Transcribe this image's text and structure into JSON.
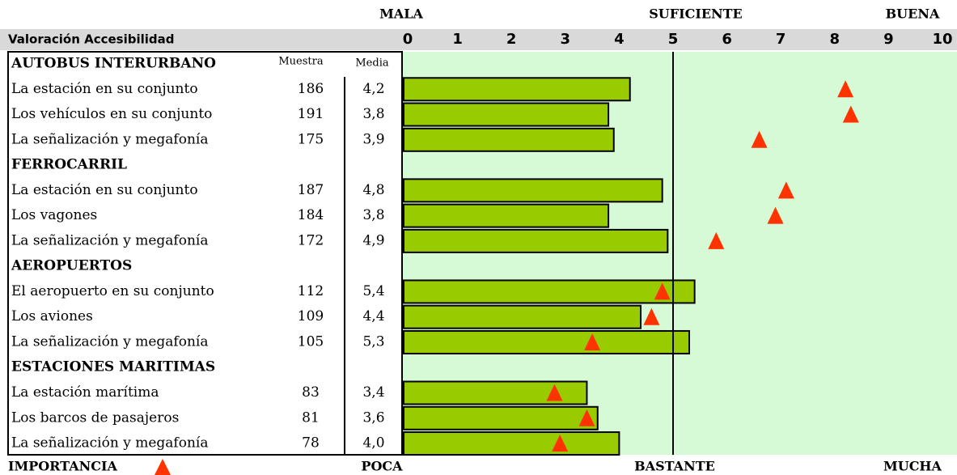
{
  "chart_data": {
    "type": "bar",
    "title": "Valoración Accesibilidad",
    "top_labels": [
      "MALA",
      "SUFICIENTE",
      "BUENA"
    ],
    "bottom_labels": [
      "POCA",
      "BASTANTE",
      "MUCHA"
    ],
    "marker_legend": "IMPORTANCIA",
    "sample_header": "Muestra",
    "mean_header": "Media",
    "xlim": [
      0,
      10
    ],
    "xticks": [
      0,
      1,
      2,
      3,
      4,
      5,
      6,
      7,
      8,
      9,
      10
    ],
    "reference_line": 5,
    "bar_color": "#99cc00",
    "marker_color": "#ff3300",
    "groups": [
      {
        "name": "AUTOBUS INTERURBANO",
        "categories": [
          "La estación en su conjunto",
          "Los vehículos en su conjunto",
          "La señalización y megafonía"
        ],
        "sample": [
          186,
          191,
          175
        ],
        "values": [
          4.2,
          3.8,
          3.9
        ],
        "value_labels": [
          "4,2",
          "3,8",
          "3,9"
        ],
        "importance": [
          8.2,
          8.3,
          6.6
        ]
      },
      {
        "name": "FERROCARRIL",
        "categories": [
          "La estación en su conjunto",
          "Los vagones",
          "La señalización y megafonía"
        ],
        "sample": [
          187,
          184,
          172
        ],
        "values": [
          4.8,
          3.8,
          4.9
        ],
        "value_labels": [
          "4,8",
          "3,8",
          "4,9"
        ],
        "importance": [
          7.1,
          6.9,
          5.8
        ]
      },
      {
        "name": "AEROPUERTOS",
        "categories": [
          "El aeropuerto en su conjunto",
          "Los aviones",
          "La señalización y megafonía"
        ],
        "sample": [
          112,
          109,
          105
        ],
        "values": [
          5.4,
          4.4,
          5.3
        ],
        "value_labels": [
          "5,4",
          "4,4",
          "5,3"
        ],
        "importance": [
          4.8,
          4.6,
          3.5
        ]
      },
      {
        "name": "ESTACIONES MARITIMAS",
        "categories": [
          "La estación marítima",
          "Los barcos de pasajeros",
          "La señalización y megafonía"
        ],
        "sample": [
          83,
          81,
          78
        ],
        "values": [
          3.4,
          3.6,
          4.0
        ],
        "value_labels": [
          "3,4",
          "3,6",
          "4,0"
        ],
        "importance": [
          2.8,
          3.4,
          2.9
        ]
      }
    ]
  }
}
